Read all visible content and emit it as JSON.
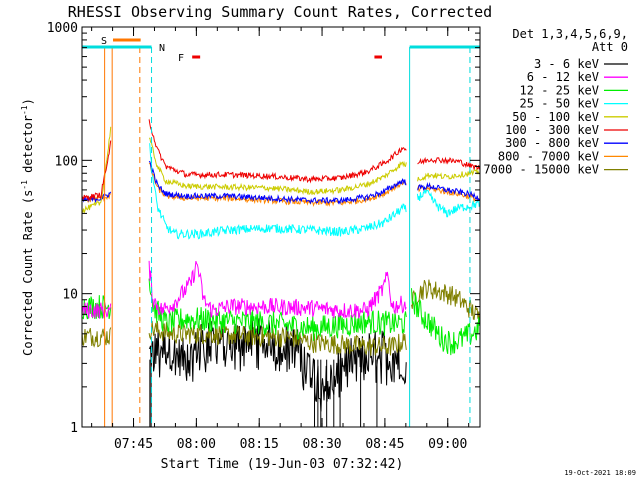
{
  "chart_data": {
    "type": "line",
    "title": "RHESSI Observing Summary Count Rates, Corrected",
    "xlabel": "Start Time (19-Jun-03 07:32:42)",
    "ylabel_main": "Corrected Count Rate (s",
    "ylabel_sup1": "-1",
    "ylabel_mid": " detector",
    "ylabel_sup2": "-1",
    "ylabel_end": ")",
    "yscale": "log",
    "ylim": [
      1,
      1000
    ],
    "xlim_minutes": [
      0,
      95
    ],
    "y_ticks": [
      {
        "value": 1,
        "label": "1"
      },
      {
        "value": 10,
        "label": "10"
      },
      {
        "value": 100,
        "label": "100"
      },
      {
        "value": 1000,
        "label": "1000"
      }
    ],
    "x_ticks": [
      {
        "minute": 12.3,
        "label": "07:45"
      },
      {
        "minute": 27.3,
        "label": "08:00"
      },
      {
        "minute": 42.3,
        "label": "08:15"
      },
      {
        "minute": 57.3,
        "label": "08:30"
      },
      {
        "minute": 72.3,
        "label": "08:45"
      },
      {
        "minute": 87.3,
        "label": "09:00"
      }
    ],
    "legend_header": [
      "Det 1,3,4,5,6,9,",
      "Att 0"
    ],
    "legend_position": "right",
    "series": [
      {
        "name": "3 - 6 keV",
        "color": "#000000"
      },
      {
        "name": "6 - 12 keV",
        "color": "#ff00ff"
      },
      {
        "name": "12 - 25 keV",
        "color": "#00ee00"
      },
      {
        "name": "25 - 50 keV",
        "color": "#00ffff"
      },
      {
        "name": "50 - 100 keV",
        "color": "#cccc00"
      },
      {
        "name": "100 - 300 keV",
        "color": "#ee0000"
      },
      {
        "name": "300 - 800 keV",
        "color": "#0000ff"
      },
      {
        "name": "800 - 7000 keV",
        "color": "#ff8800"
      },
      {
        "name": "7000 - 15000 keV",
        "color": "#808000"
      }
    ],
    "profiles": {
      "red": [
        [
          0,
          52
        ],
        [
          4.5,
          55
        ],
        [
          5.5,
          80
        ],
        [
          6.5,
          110
        ],
        [
          7.0,
          150
        ],
        [
          7.1,
          0
        ],
        [
          15.8,
          0
        ],
        [
          16.0,
          200
        ],
        [
          18,
          120
        ],
        [
          20,
          90
        ],
        [
          25,
          78
        ],
        [
          35,
          78
        ],
        [
          45,
          76
        ],
        [
          55,
          72
        ],
        [
          62,
          74
        ],
        [
          68,
          82
        ],
        [
          72,
          95
        ],
        [
          75,
          112
        ],
        [
          76.5,
          125
        ],
        [
          77.5,
          120
        ],
        [
          78,
          0
        ],
        [
          80,
          95
        ],
        [
          83,
          102
        ],
        [
          87,
          100
        ],
        [
          90,
          98
        ],
        [
          93,
          90
        ],
        [
          95,
          88
        ]
      ],
      "olive": [
        [
          0,
          42
        ],
        [
          4.5,
          48
        ],
        [
          5.5,
          80
        ],
        [
          6.5,
          140
        ],
        [
          7.0,
          200
        ],
        [
          7.1,
          0
        ],
        [
          15.8,
          0
        ],
        [
          16.0,
          150
        ],
        [
          18,
          90
        ],
        [
          20,
          70
        ],
        [
          25,
          64
        ],
        [
          35,
          63
        ],
        [
          45,
          62
        ],
        [
          55,
          58
        ],
        [
          62,
          60
        ],
        [
          68,
          66
        ],
        [
          72,
          75
        ],
        [
          75,
          88
        ],
        [
          76.5,
          95
        ],
        [
          77.5,
          92
        ],
        [
          78,
          0
        ],
        [
          80,
          72
        ],
        [
          83,
          78
        ],
        [
          87,
          75
        ],
        [
          90,
          78
        ],
        [
          93,
          80
        ],
        [
          95,
          82
        ]
      ],
      "blue": [
        [
          0,
          50
        ],
        [
          4.5,
          52
        ],
        [
          5.5,
          54
        ],
        [
          7.0,
          57
        ],
        [
          7.1,
          0
        ],
        [
          15.8,
          0
        ],
        [
          16.0,
          100
        ],
        [
          18,
          65
        ],
        [
          20,
          56
        ],
        [
          25,
          54
        ],
        [
          35,
          54
        ],
        [
          45,
          52
        ],
        [
          55,
          50
        ],
        [
          62,
          50
        ],
        [
          68,
          53
        ],
        [
          72,
          58
        ],
        [
          75,
          66
        ],
        [
          76.5,
          70
        ],
        [
          77.5,
          68
        ],
        [
          78,
          0
        ],
        [
          80,
          62
        ],
        [
          83,
          64
        ],
        [
          87,
          60
        ],
        [
          90,
          58
        ],
        [
          93,
          55
        ],
        [
          95,
          52
        ]
      ],
      "orange": [
        [
          0,
          50
        ],
        [
          4.5,
          52
        ],
        [
          5.5,
          53
        ],
        [
          7.0,
          55
        ],
        [
          7.1,
          0
        ],
        [
          15.8,
          0
        ],
        [
          16.0,
          95
        ],
        [
          18,
          62
        ],
        [
          20,
          54
        ],
        [
          25,
          52
        ],
        [
          35,
          52
        ],
        [
          45,
          50
        ],
        [
          55,
          48
        ],
        [
          62,
          48
        ],
        [
          68,
          51
        ],
        [
          72,
          56
        ],
        [
          75,
          64
        ],
        [
          76.5,
          68
        ],
        [
          77.5,
          66
        ],
        [
          78,
          0
        ],
        [
          80,
          60
        ],
        [
          83,
          62
        ],
        [
          87,
          58
        ],
        [
          90,
          56
        ],
        [
          93,
          53
        ],
        [
          95,
          50
        ]
      ],
      "cyan": [
        [
          15.8,
          0
        ],
        [
          16.0,
          140
        ],
        [
          17,
          70
        ],
        [
          18,
          45
        ],
        [
          20,
          32
        ],
        [
          22,
          28
        ],
        [
          28,
          28
        ],
        [
          35,
          30
        ],
        [
          45,
          31
        ],
        [
          55,
          30
        ],
        [
          62,
          29
        ],
        [
          68,
          31
        ],
        [
          72,
          34
        ],
        [
          75,
          40
        ],
        [
          76.5,
          44
        ],
        [
          77.5,
          42
        ],
        [
          78,
          0
        ],
        [
          80,
          52
        ],
        [
          82,
          58
        ],
        [
          85,
          45
        ],
        [
          87,
          40
        ],
        [
          90,
          44
        ],
        [
          93,
          46
        ],
        [
          95,
          48
        ]
      ],
      "magenta": [
        [
          0,
          7.5
        ],
        [
          4.5,
          7.5
        ],
        [
          7.0,
          7.5
        ],
        [
          7.1,
          0
        ],
        [
          15.8,
          0
        ],
        [
          16.0,
          16
        ],
        [
          17,
          9
        ],
        [
          19,
          7.5
        ],
        [
          22,
          8.5
        ],
        [
          26,
          12
        ],
        [
          27.5,
          17
        ],
        [
          29,
          9
        ],
        [
          31,
          7.5
        ],
        [
          35,
          8
        ],
        [
          45,
          8
        ],
        [
          55,
          7.8
        ],
        [
          62,
          7.5
        ],
        [
          68,
          7.5
        ],
        [
          72,
          11
        ],
        [
          73,
          14
        ],
        [
          74,
          8
        ],
        [
          77.5,
          8.5
        ],
        [
          78,
          0
        ]
      ],
      "green": [
        [
          0,
          8
        ],
        [
          7.0,
          8
        ],
        [
          7.1,
          0
        ],
        [
          15.8,
          0
        ],
        [
          16.0,
          14
        ],
        [
          17,
          8
        ],
        [
          20,
          6
        ],
        [
          25,
          6.5
        ],
        [
          35,
          6.2
        ],
        [
          45,
          6.0
        ],
        [
          55,
          5.5
        ],
        [
          62,
          5.8
        ],
        [
          68,
          6.2
        ],
        [
          72,
          6.0
        ],
        [
          77.5,
          6.0
        ],
        [
          78,
          0
        ],
        [
          78.5,
          9
        ],
        [
          79,
          9
        ],
        [
          80,
          8
        ],
        [
          81,
          7
        ],
        [
          82,
          6.5
        ],
        [
          83,
          6
        ],
        [
          84,
          5.5
        ],
        [
          85,
          5
        ],
        [
          86,
          4.6
        ],
        [
          88,
          4.3
        ],
        [
          91,
          4.6
        ],
        [
          93,
          5.0
        ],
        [
          95,
          5.5
        ]
      ],
      "olive2": [
        [
          0,
          4.8
        ],
        [
          7.0,
          4.8
        ],
        [
          7.1,
          0
        ],
        [
          15.8,
          0
        ],
        [
          16.0,
          5.5
        ],
        [
          18,
          5.3
        ],
        [
          22,
          5.0
        ],
        [
          30,
          5.0
        ],
        [
          40,
          4.8
        ],
        [
          50,
          4.7
        ],
        [
          55,
          4.3
        ],
        [
          60,
          4.2
        ],
        [
          65,
          4.1
        ],
        [
          70,
          4.0
        ],
        [
          74,
          4.0
        ],
        [
          77.5,
          4.5
        ],
        [
          78,
          0
        ],
        [
          78.5,
          8
        ],
        [
          80,
          10
        ],
        [
          82,
          11
        ],
        [
          85,
          10.5
        ],
        [
          88,
          9.8
        ],
        [
          90,
          9.0
        ],
        [
          92,
          8.0
        ],
        [
          94,
          7.0
        ],
        [
          95,
          6.5
        ]
      ],
      "black": [
        [
          16.0,
          3.5
        ],
        [
          18,
          4.0
        ],
        [
          20,
          4.0
        ],
        [
          22,
          3.6
        ],
        [
          24,
          3.3
        ],
        [
          26,
          3.4
        ],
        [
          28,
          4.2
        ],
        [
          30,
          4.5
        ],
        [
          35,
          4.3
        ],
        [
          40,
          4.8
        ],
        [
          45,
          4.5
        ],
        [
          50,
          4.2
        ],
        [
          52,
          3.8
        ],
        [
          54,
          3.0
        ],
        [
          56,
          2.4
        ],
        [
          58,
          2.1
        ],
        [
          60,
          2.5
        ],
        [
          62,
          3.0
        ],
        [
          65,
          3.4
        ],
        [
          68,
          3.7
        ],
        [
          72,
          3.8
        ],
        [
          74,
          3.6
        ],
        [
          77,
          3.2
        ],
        [
          77.5,
          3.0
        ]
      ]
    },
    "markers": {
      "S": {
        "label": "S",
        "color": "#ff7700"
      },
      "N": {
        "label": "N",
        "color": "#00dddd"
      },
      "F": {
        "label": "F",
        "color": "#ee0000"
      }
    },
    "footer_date": "19-Oct-2021 18:09"
  }
}
